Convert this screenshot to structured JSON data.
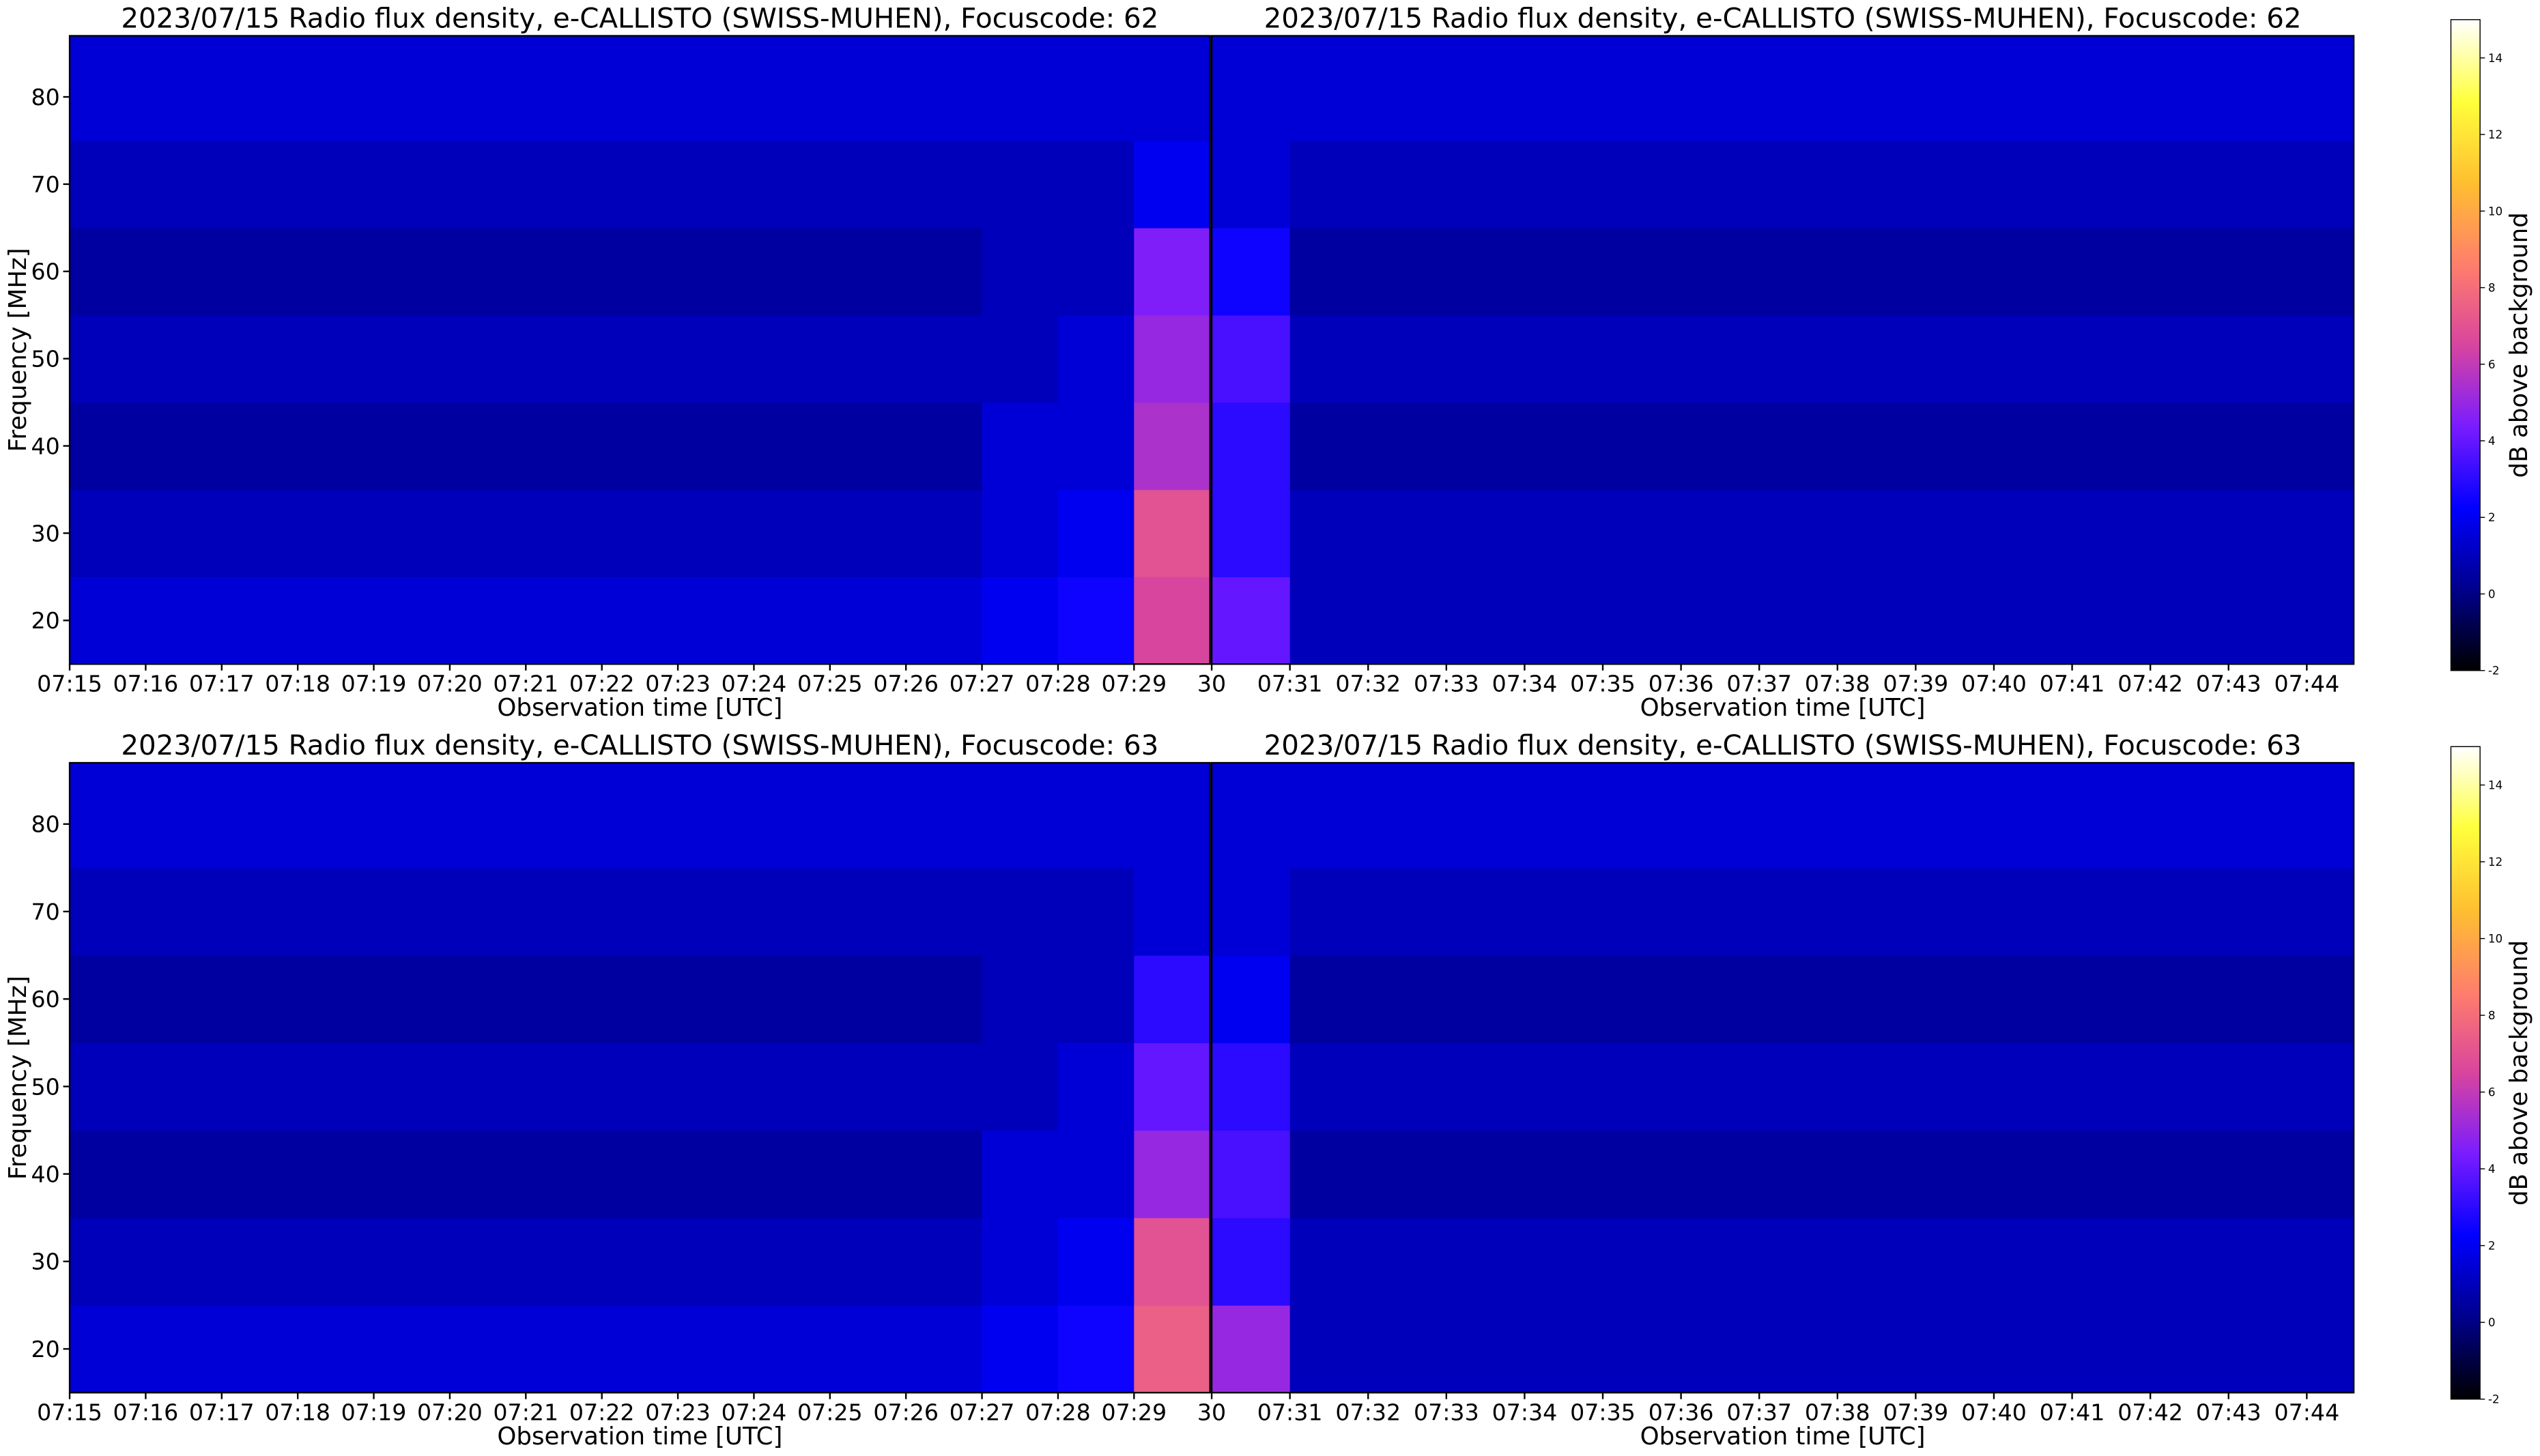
{
  "chart_data": [
    {
      "type": "heatmap",
      "title": "2023/07/15  Radio flux density, e-CALLISTO (SWISS-MUHEN), Focuscode: 62",
      "xlabel": "Observation time [UTC]",
      "ylabel": "Frequency [MHz]",
      "xlim": [
        0,
        15
      ],
      "ylim": [
        15,
        87
      ],
      "yticks": [
        20,
        30,
        40,
        50,
        60,
        70,
        80
      ],
      "xticks": [
        {
          "value": 0,
          "label": "07:15"
        },
        {
          "value": 1,
          "label": "07:16"
        },
        {
          "value": 2,
          "label": "07:17"
        },
        {
          "value": 3,
          "label": "07:18"
        },
        {
          "value": 4,
          "label": "07:19"
        },
        {
          "value": 5,
          "label": "07:20"
        },
        {
          "value": 6,
          "label": "07:21"
        },
        {
          "value": 7,
          "label": "07:22"
        },
        {
          "value": 8,
          "label": "07:23"
        },
        {
          "value": 9,
          "label": "07:24"
        },
        {
          "value": 10,
          "label": "07:25"
        },
        {
          "value": 11,
          "label": "07:26"
        },
        {
          "value": 12,
          "label": "07:27"
        },
        {
          "value": 13,
          "label": "07:28"
        },
        {
          "value": 14,
          "label": "07:29"
        }
      ],
      "x_bins": [
        0,
        1,
        2,
        3,
        4,
        5,
        6,
        7,
        8,
        9,
        10,
        11,
        12,
        13,
        14,
        15
      ],
      "y_bins": [
        15,
        25,
        35,
        45,
        55,
        65,
        75,
        87
      ],
      "z": [
        [
          1.5,
          1.5,
          1.5,
          1.5,
          1.5,
          1.5,
          1.5,
          1.5,
          1.5,
          1.5,
          1.5,
          1.5,
          2,
          2.5,
          6.5
        ],
        [
          1,
          1,
          1,
          1,
          1,
          1,
          1,
          1,
          1,
          1,
          1,
          1,
          1.5,
          2,
          7
        ],
        [
          0.5,
          0.5,
          0.5,
          0.5,
          0.5,
          0.5,
          0.5,
          0.5,
          0.5,
          0.5,
          0.5,
          0.5,
          1.5,
          1.5,
          5.5
        ],
        [
          1,
          1,
          1,
          1,
          1,
          1,
          1,
          1,
          1,
          1,
          1,
          1,
          1,
          1.5,
          5
        ],
        [
          0.5,
          0.5,
          0.5,
          0.5,
          0.5,
          0.5,
          0.5,
          0.5,
          0.5,
          0.5,
          0.5,
          0.5,
          1,
          1,
          4.5
        ],
        [
          1,
          1,
          1,
          1,
          1,
          1,
          1,
          1,
          1,
          1,
          1,
          1,
          1,
          1,
          2
        ],
        [
          1.5,
          1.5,
          1.5,
          1.5,
          1.5,
          1.5,
          1.5,
          1.5,
          1.5,
          1.5,
          1.5,
          1.5,
          1.5,
          1.5,
          1.5
        ]
      ]
    },
    {
      "type": "heatmap",
      "title": "2023/07/15  Radio flux density, e-CALLISTO (SWISS-MUHEN), Focuscode: 62",
      "xlabel": "Observation time [UTC]",
      "xlim": [
        15,
        29.6
      ],
      "ylim": [
        15,
        87
      ],
      "xticks": [
        {
          "value": 15,
          "label": "30"
        },
        {
          "value": 16,
          "label": "07:31"
        },
        {
          "value": 17,
          "label": "07:32"
        },
        {
          "value": 18,
          "label": "07:33"
        },
        {
          "value": 19,
          "label": "07:34"
        },
        {
          "value": 20,
          "label": "07:35"
        },
        {
          "value": 21,
          "label": "07:36"
        },
        {
          "value": 22,
          "label": "07:37"
        },
        {
          "value": 23,
          "label": "07:38"
        },
        {
          "value": 24,
          "label": "07:39"
        },
        {
          "value": 25,
          "label": "07:40"
        },
        {
          "value": 26,
          "label": "07:41"
        },
        {
          "value": 27,
          "label": "07:42"
        },
        {
          "value": 28,
          "label": "07:43"
        },
        {
          "value": 29,
          "label": "07:44"
        }
      ],
      "x_bins": [
        15,
        16,
        17,
        18,
        19,
        20,
        21,
        22,
        23,
        24,
        25,
        26,
        27,
        28,
        29,
        29.6
      ],
      "y_bins": [
        15,
        25,
        35,
        45,
        55,
        65,
        75,
        87
      ],
      "z": [
        [
          4,
          1,
          1,
          1,
          1,
          1,
          1,
          1,
          1,
          1,
          1,
          1,
          1,
          1,
          1
        ],
        [
          3,
          1,
          1,
          1,
          1,
          1,
          1,
          1,
          1,
          1,
          1,
          1,
          1,
          1,
          1
        ],
        [
          3,
          0.5,
          0.5,
          0.5,
          0.5,
          0.5,
          0.5,
          0.5,
          0.5,
          0.5,
          0.5,
          0.5,
          0.5,
          0.5,
          0.5
        ],
        [
          3.5,
          1,
          1,
          1,
          1,
          1,
          1,
          1,
          1,
          1,
          1,
          1,
          1,
          1,
          1
        ],
        [
          2.5,
          0.5,
          0.5,
          0.5,
          0.5,
          0.5,
          0.5,
          0.5,
          0.5,
          0.5,
          0.5,
          0.5,
          0.5,
          0.5,
          0.5
        ],
        [
          1.5,
          1,
          1,
          1,
          1,
          1,
          1,
          1,
          1,
          1,
          1,
          1,
          1,
          1,
          1
        ],
        [
          1.5,
          1.5,
          1.5,
          1.5,
          1.5,
          1.5,
          1.5,
          1.5,
          1.5,
          1.5,
          1.5,
          1.5,
          1.5,
          1.5,
          1.5
        ]
      ]
    },
    {
      "type": "heatmap",
      "title": "2023/07/15  Radio flux density, e-CALLISTO (SWISS-MUHEN), Focuscode: 63",
      "xlabel": "Observation time [UTC]",
      "ylabel": "Frequency [MHz]",
      "xlim": [
        0,
        15
      ],
      "ylim": [
        15,
        87
      ],
      "yticks": [
        20,
        30,
        40,
        50,
        60,
        70,
        80
      ],
      "xticks": [
        {
          "value": 0,
          "label": "07:15"
        },
        {
          "value": 1,
          "label": "07:16"
        },
        {
          "value": 2,
          "label": "07:17"
        },
        {
          "value": 3,
          "label": "07:18"
        },
        {
          "value": 4,
          "label": "07:19"
        },
        {
          "value": 5,
          "label": "07:20"
        },
        {
          "value": 6,
          "label": "07:21"
        },
        {
          "value": 7,
          "label": "07:22"
        },
        {
          "value": 8,
          "label": "07:23"
        },
        {
          "value": 9,
          "label": "07:24"
        },
        {
          "value": 10,
          "label": "07:25"
        },
        {
          "value": 11,
          "label": "07:26"
        },
        {
          "value": 12,
          "label": "07:27"
        },
        {
          "value": 13,
          "label": "07:28"
        },
        {
          "value": 14,
          "label": "07:29"
        }
      ],
      "x_bins": [
        0,
        1,
        2,
        3,
        4,
        5,
        6,
        7,
        8,
        9,
        10,
        11,
        12,
        13,
        14,
        15
      ],
      "y_bins": [
        15,
        25,
        35,
        45,
        55,
        65,
        75,
        87
      ],
      "z": [
        [
          1.5,
          1.5,
          1.5,
          1.5,
          1.5,
          1.5,
          1.5,
          1.5,
          1.5,
          1.5,
          1.5,
          1.5,
          2,
          2.5,
          7.5
        ],
        [
          1,
          1,
          1,
          1,
          1,
          1,
          1,
          1,
          1,
          1,
          1,
          1,
          1.5,
          2,
          7
        ],
        [
          0.5,
          0.5,
          0.5,
          0.5,
          0.5,
          0.5,
          0.5,
          0.5,
          0.5,
          0.5,
          0.5,
          0.5,
          1.5,
          1.5,
          5
        ],
        [
          1,
          1,
          1,
          1,
          1,
          1,
          1,
          1,
          1,
          1,
          1,
          1,
          1,
          1.5,
          4
        ],
        [
          0.5,
          0.5,
          0.5,
          0.5,
          0.5,
          0.5,
          0.5,
          0.5,
          0.5,
          0.5,
          0.5,
          0.5,
          1,
          1,
          3
        ],
        [
          1,
          1,
          1,
          1,
          1,
          1,
          1,
          1,
          1,
          1,
          1,
          1,
          1,
          1,
          1.5
        ],
        [
          1.5,
          1.5,
          1.5,
          1.5,
          1.5,
          1.5,
          1.5,
          1.5,
          1.5,
          1.5,
          1.5,
          1.5,
          1.5,
          1.5,
          1.5
        ]
      ]
    },
    {
      "type": "heatmap",
      "title": "2023/07/15  Radio flux density, e-CALLISTO (SWISS-MUHEN), Focuscode: 63",
      "xlabel": "Observation time [UTC]",
      "xlim": [
        15,
        29.6
      ],
      "ylim": [
        15,
        87
      ],
      "xticks": [
        {
          "value": 15,
          "label": "30"
        },
        {
          "value": 16,
          "label": "07:31"
        },
        {
          "value": 17,
          "label": "07:32"
        },
        {
          "value": 18,
          "label": "07:33"
        },
        {
          "value": 19,
          "label": "07:34"
        },
        {
          "value": 20,
          "label": "07:35"
        },
        {
          "value": 21,
          "label": "07:36"
        },
        {
          "value": 22,
          "label": "07:37"
        },
        {
          "value": 23,
          "label": "07:38"
        },
        {
          "value": 24,
          "label": "07:39"
        },
        {
          "value": 25,
          "label": "07:40"
        },
        {
          "value": 26,
          "label": "07:41"
        },
        {
          "value": 27,
          "label": "07:42"
        },
        {
          "value": 28,
          "label": "07:43"
        },
        {
          "value": 29,
          "label": "07:44"
        }
      ],
      "x_bins": [
        15,
        16,
        17,
        18,
        19,
        20,
        21,
        22,
        23,
        24,
        25,
        26,
        27,
        28,
        29,
        29.6
      ],
      "y_bins": [
        15,
        25,
        35,
        45,
        55,
        65,
        75,
        87
      ],
      "z": [
        [
          5,
          1,
          1,
          1,
          1,
          1,
          1,
          1,
          1,
          1,
          1,
          1,
          1,
          1,
          1
        ],
        [
          3,
          1,
          1,
          1,
          1,
          1,
          1,
          1,
          1,
          1,
          1,
          1,
          1,
          1,
          1
        ],
        [
          3.5,
          0.5,
          0.5,
          0.5,
          0.5,
          0.5,
          0.5,
          0.5,
          0.5,
          0.5,
          0.5,
          0.5,
          0.5,
          0.5,
          0.5
        ],
        [
          3,
          1,
          1,
          1,
          1,
          1,
          1,
          1,
          1,
          1,
          1,
          1,
          1,
          1,
          1
        ],
        [
          2,
          0.5,
          0.5,
          0.5,
          0.5,
          0.5,
          0.5,
          0.5,
          0.5,
          0.5,
          0.5,
          0.5,
          0.5,
          0.5,
          0.5
        ],
        [
          1.5,
          1,
          1,
          1,
          1,
          1,
          1,
          1,
          1,
          1,
          1,
          1,
          1,
          1,
          1
        ],
        [
          1.5,
          1.5,
          1.5,
          1.5,
          1.5,
          1.5,
          1.5,
          1.5,
          1.5,
          1.5,
          1.5,
          1.5,
          1.5,
          1.5,
          1.5
        ]
      ]
    }
  ],
  "colorbars": [
    {
      "label": "dB above background",
      "lim": [
        -2,
        15
      ],
      "ticks": [
        -2,
        0,
        2,
        4,
        6,
        8,
        10,
        12,
        14
      ],
      "colors": [
        "#000000",
        "#00008c",
        "#0000ff",
        "#7a1cff",
        "#d8459e",
        "#ff7f6b",
        "#ffbf30",
        "#ffff3c",
        "#ffffff"
      ]
    },
    {
      "label": "dB above background",
      "lim": [
        -2,
        15
      ],
      "ticks": [
        -2,
        0,
        2,
        4,
        6,
        8,
        10,
        12,
        14
      ],
      "colors": [
        "#000000",
        "#00008c",
        "#0000ff",
        "#7a1cff",
        "#d8459e",
        "#ff7f6b",
        "#ffbf30",
        "#ffff3c",
        "#ffffff"
      ]
    }
  ]
}
